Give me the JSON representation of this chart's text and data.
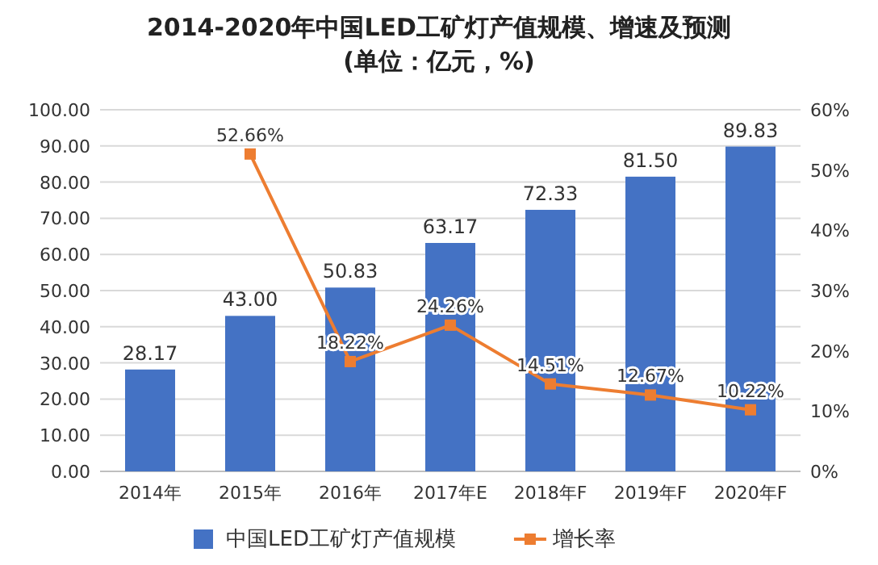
{
  "chart_data": {
    "type": "bar",
    "title": "2014-2020年中国LED工矿灯产值规模、增速及预测(单位：亿元，%)",
    "categories": [
      "2014年",
      "2015年",
      "2016年",
      "2017年E",
      "2018年F",
      "2019年F",
      "2020年F"
    ],
    "series": [
      {
        "name": "中国LED工矿灯产值规模",
        "color": "#4472c4",
        "values": [
          28.17,
          43.0,
          50.83,
          63.17,
          72.33,
          81.5,
          89.83
        ],
        "value_labels": [
          "28.17",
          "43.00",
          "50.83",
          "63.17",
          "72.33",
          "81.50",
          "89.83"
        ]
      },
      {
        "name": "增长率",
        "type": "line",
        "axis": "y2",
        "marker": "square",
        "color": "#ed7d31",
        "values": [
          null,
          52.66,
          18.22,
          24.26,
          14.51,
          12.67,
          10.22
        ],
        "value_labels": [
          null,
          "52.66%",
          "18.22%",
          "24.26%",
          "14.51%",
          "12.67%",
          "10.22%"
        ]
      }
    ],
    "ylim": [
      0,
      100
    ],
    "yticks": [
      {
        "value": 0,
        "label": "0.00"
      },
      {
        "value": 10,
        "label": "10.00"
      },
      {
        "value": 20,
        "label": "20.00"
      },
      {
        "value": 30,
        "label": "30.00"
      },
      {
        "value": 40,
        "label": "40.00"
      },
      {
        "value": 50,
        "label": "50.00"
      },
      {
        "value": 60,
        "label": "60.00"
      },
      {
        "value": 70,
        "label": "70.00"
      },
      {
        "value": 80,
        "label": "80.00"
      },
      {
        "value": 90,
        "label": "90.00"
      },
      {
        "value": 100,
        "label": "100.00"
      }
    ],
    "y2lim": [
      0,
      60
    ],
    "y2ticks": [
      {
        "value": 0,
        "label": "0%"
      },
      {
        "value": 10,
        "label": "10%"
      },
      {
        "value": 20,
        "label": "20%"
      },
      {
        "value": 30,
        "label": "30%"
      },
      {
        "value": 40,
        "label": "40%"
      },
      {
        "value": 50,
        "label": "50%"
      },
      {
        "value": 60,
        "label": "60%"
      }
    ],
    "grid": "y",
    "legend": "bottom"
  }
}
